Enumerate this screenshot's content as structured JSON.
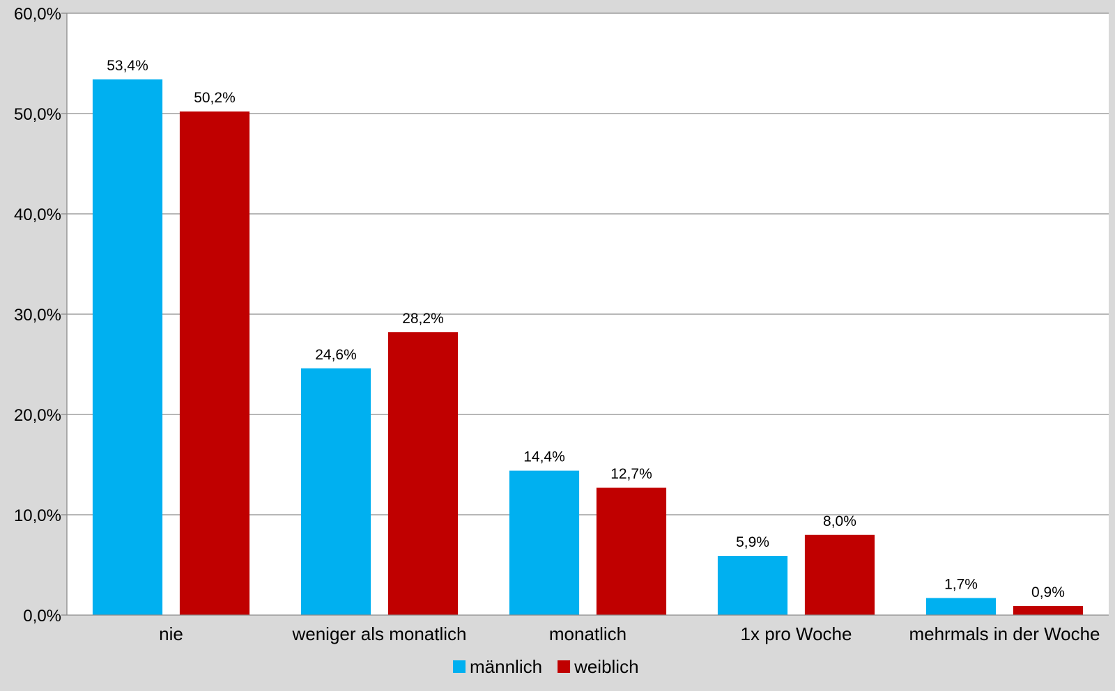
{
  "chart_data": {
    "type": "bar",
    "categories": [
      "nie",
      "weniger als monatlich",
      "monatlich",
      "1x pro Woche",
      "mehrmals in der Woche"
    ],
    "series": [
      {
        "name": "männlich",
        "color": "#00b0f0",
        "values": [
          53.4,
          24.6,
          14.4,
          5.9,
          1.7
        ],
        "labels": [
          "53,4%",
          "24,6%",
          "14,4%",
          "5,9%",
          "1,7%"
        ]
      },
      {
        "name": "weiblich",
        "color": "#c00000",
        "values": [
          50.2,
          28.2,
          12.7,
          8.0,
          0.9
        ],
        "labels": [
          "50,2%",
          "28,2%",
          "12,7%",
          "8,0%",
          "0,9%"
        ]
      }
    ],
    "yticks": [
      0,
      10,
      20,
      30,
      40,
      50,
      60
    ],
    "ytick_labels": [
      "0,0%",
      "10,0%",
      "20,0%",
      "30,0%",
      "40,0%",
      "50,0%",
      "60,0%"
    ],
    "ylim": [
      0,
      60
    ],
    "grid": true,
    "legend_position": "bottom",
    "plot_background": "#ffffff",
    "chart_background": "#d9d9d9"
  }
}
